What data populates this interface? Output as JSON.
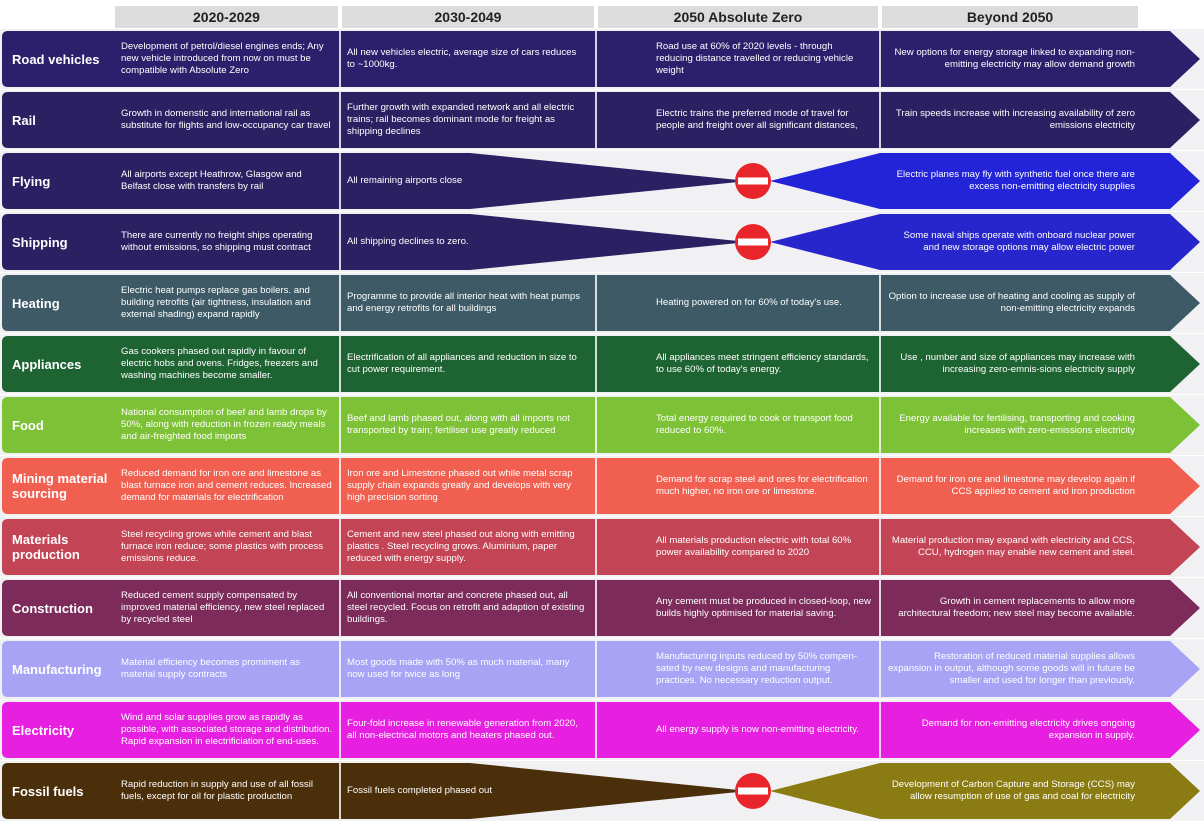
{
  "header": {
    "columns": [
      "2020-2029",
      "2030-2049",
      "2050 Absolute Zero",
      "Beyond 2050"
    ]
  },
  "rows": [
    {
      "label": "Road vehicles",
      "color": "#2c1f6b",
      "cells": [
        "Development of petrol/diesel engines ends; Any new vehicle introduced from now on must be compatible with Absolute Zero",
        "All new vehicles electric, average size of cars reduces to ~1000kg.",
        "Road use at 60% of 2020 levels - through reducing distance travelled or reducing vehicle weight",
        "New options for energy storage linked to expanding non-emitting electricity may allow demand growth"
      ]
    },
    {
      "label": "Rail",
      "color": "#2b2162",
      "cells": [
        "Growth in domenstic and international rail as substitute for flights and low-occupancy car travel",
        "Further growth with expanded network and all electric trains; rail becomes dominant mode for freight as shipping declines",
        "Electric trains the preferred mode of travel for people and freight over all significant distances,",
        "Train speeds increase with increasing availability of zero emissions electricity"
      ]
    },
    {
      "label": "Flying",
      "color": "#2b2162",
      "color_right": "#2323d8",
      "cells": [
        "All airports except Heathrow, Glasgow and Belfast close with transfers by rail",
        "All remaining airports close",
        null,
        "Electric planes may fly with synthetic fuel once  there are excess non-emitting electricity supplies"
      ]
    },
    {
      "label": "Shipping",
      "color": "#2b2162",
      "color_right": "#2626cc",
      "cells": [
        "There are currently no freight ships operating without emissions, so shipping must contract",
        "All shipping declines to zero.",
        null,
        "Some naval ships operate with onboard nuclear power and new storage options may allow electric power"
      ]
    },
    {
      "label": "Heating",
      "color": "#3d5a66",
      "cells": [
        "Electric heat pumps replace gas boilers. and building retrofits (air tightness, insulation and external shading) expand rapidly",
        "Programme to provide all interior heat with heat pumps and energy retrofits for all buildings",
        "Heating powered on for 60% of today's use.",
        "Option to increase use of heating and cooling as supply of non-emitting electricity expands"
      ]
    },
    {
      "label": "Appliances",
      "color": "#1e6432",
      "cells": [
        "Gas cookers phased out rapidly in favour of electric hobs and ovens. Fridges, freezers and washing machines become smaller.",
        "Electrification of all appliances and reduction in size to cut power requirement.",
        "All appliances meet stringent efficiency standards, to use 60% of today's energy.",
        "Use , number and size of appliances  may increase with increasing zero-emnis-sions electricity supply"
      ]
    },
    {
      "label": "Food",
      "color": "#7dc136",
      "cells": [
        "National consumption of beef and lamb drops by 50%, along with reduction in frozen ready meals and air-freighted food imports",
        "Beef and lamb phased out, along with all imports not transported by train; fertiliser use greatly reduced",
        "Total energy required to cook or transport food reduced to 60%.",
        "Energy available for fertilising, transporting and cooking increases with zero-emissions electricity"
      ]
    },
    {
      "label": "Mining  material sourcing",
      "color": "#f05f4f",
      "cells": [
        "Reduced demand for iron ore and limestone as blast furnace iron and cement reduces. Increased demand for materials for electrification",
        "Iron ore and Limestone phased out while metal scrap supply chain expands greatly and develops with very high precision sorting",
        "Demand for scrap steel and ores for electrification much higher, no iron ore or limestone.",
        "Demand for iron ore and limestone may develop again if CCS applied to cement and iron production"
      ]
    },
    {
      "label": "Materials production",
      "color": "#c24455",
      "cells": [
        "Steel recycling grows while cement and blast furnace iron reduce; some plastics with process emissions reduce.",
        "Cement and new steel phased out along with emitting plastics . Steel recycling grows. Aluminium, paper reduced with energy supply.",
        "All materials production electric with total 60% power availability compared to 2020",
        "Material production may expand with electricity and CCS, CCU, hydrogen may enable new cement and steel."
      ]
    },
    {
      "label": "Construction",
      "color": "#7c2b5b",
      "cells": [
        "Reduced cement supply compensated by improved material efficiency, new steel replaced by recycled steel",
        "All conventional mortar and concrete phased out, all steel recycled. Focus on retrofit and adaption of existing buildings.",
        "Any cement must be produced in closed-loop, new builds highly optimised for material saving.",
        "Growth in cement replacements to allow more architectural freedom; new steel may become available."
      ]
    },
    {
      "label": "Manufacturing",
      "color": "#a8a3f4",
      "cells": [
        "Material efficiency becomes promiment as material supply contracts",
        "Most goods made with 50% as much material, many now used for twice as long",
        "Manufacturing inputs reduced by 50% compen-sated by new designs and manufacturing practices. No necessary reduction output.",
        "Restoration of reduced material supplies allows expansion in output, although some goods will in future be smaller and used for longer than previously."
      ]
    },
    {
      "label": "Electricity",
      "color": "#e61fe0",
      "cells": [
        "Wind and solar supplies grow as rapidly as possible, with associated storage and distribution. Rapid expansion in electrificiation of end-uses.",
        "Four-fold increase in renewable generation from 2020, all non-electrical motors and heaters phased out.",
        "All energy supply is now non-emitting electricity.",
        "Demand for non-emitting electricity drives ongoing expansion in supply."
      ]
    },
    {
      "label": "Fossil fuels",
      "color": "#4b2f0b",
      "color_right": "#8a7b12",
      "cells": [
        "Rapid reduction in supply and use of all fossil fuels, except for oil for plastic production",
        "Fossil fuels completed phased out",
        null,
        "Development of Carbon Capture and Storage (CCS) may allow resumption of use of gas and coal for electricity"
      ]
    }
  ]
}
